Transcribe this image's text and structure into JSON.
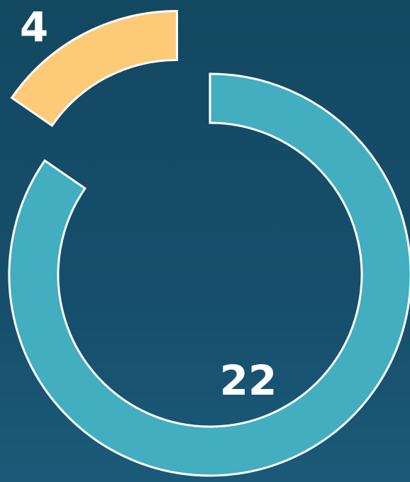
{
  "chart_data": {
    "type": "pie",
    "values": [
      22,
      4
    ],
    "colors": [
      "#42aebf",
      "#fdcb78"
    ]
  }
}
